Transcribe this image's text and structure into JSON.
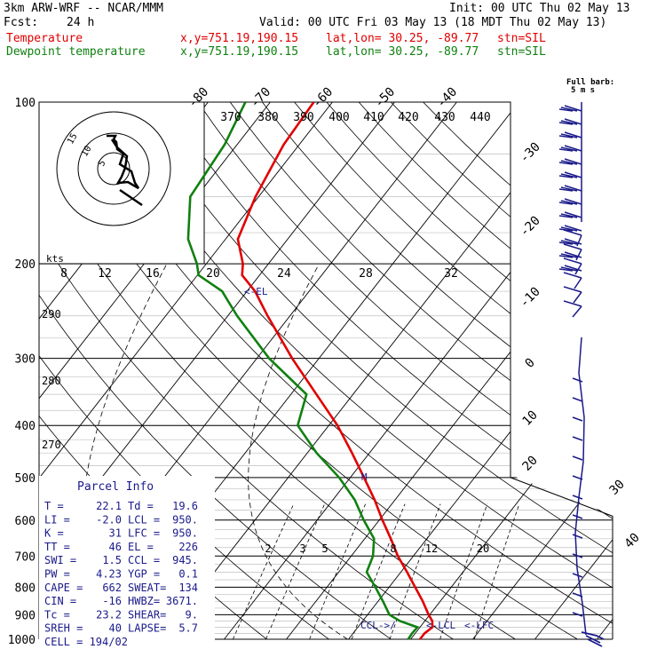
{
  "header": {
    "model": "3km ARW-WRF -- NCAR/MMM",
    "init": "Init: 00 UTC Thu 02 May 13",
    "fcst_label": "Fcst:",
    "fcst_value": "24 h",
    "valid": "Valid: 00 UTC Fri 03 May 13 (18 MDT Thu 02 May 13)"
  },
  "legend": [
    {
      "name": "Temperature",
      "xy": "x,y=751.19,190.15",
      "latlon": "lat,lon= 30.25, -89.77",
      "stn": "stn=SIL",
      "color": "#e00000"
    },
    {
      "name": "Dewpoint temperature",
      "xy": "x,y=751.19,190.15",
      "latlon": "lat,lon= 30.25, -89.77",
      "stn": "stn=SIL",
      "color": "#108010"
    }
  ],
  "wind_key": {
    "line1": "Full barb:",
    "line2": "5 m s"
  },
  "hodograph": {
    "unit": "kts",
    "ring_labels": [
      "5",
      "10",
      "15"
    ]
  },
  "parcel_info": {
    "title": "Parcel Info",
    "rows": [
      [
        "T  =",
        "22.1",
        "Td =",
        "19.6"
      ],
      [
        "LI =",
        "-2.0",
        "LCL =",
        "950."
      ],
      [
        "K  =",
        "31",
        "LFC =",
        "950."
      ],
      [
        "TT =",
        "46",
        "EL  =",
        "226"
      ],
      [
        "SWI =",
        "1.5",
        "CCL =",
        "945."
      ],
      [
        "PW =",
        "4.23",
        "YGP =",
        "0.1"
      ],
      [
        "CAPE =",
        "662",
        "SWEAT=",
        "134"
      ],
      [
        "CIN =",
        "-16",
        "HWBZ=",
        "3671."
      ],
      [
        "Tc =",
        "23.2",
        "SHEAR=",
        "9."
      ],
      [
        "SREH =",
        "40",
        "LAPSE=",
        "5.7"
      ],
      [
        "CELL = 194/02",
        "",
        "",
        ""
      ]
    ]
  },
  "annotations": {
    "el": "<-EL",
    "lcl": "<-LCL",
    "lfc": "<-LFC",
    "ccl": "CCL->/",
    "m": "M"
  },
  "chart_data": {
    "type": "line",
    "title": "",
    "pressure_levels": [
      100,
      200,
      300,
      400,
      500,
      600,
      700,
      800,
      900,
      1000
    ],
    "pressure_labels": [
      "100",
      "200",
      "300",
      "400",
      "500",
      "600",
      "700",
      "800",
      "900",
      "1000"
    ],
    "isotherm_labels": [
      "-80",
      "-70",
      "-60",
      "-50",
      "-40",
      "-30",
      "-20",
      "-10",
      "0",
      "10",
      "20",
      "30",
      "40"
    ],
    "theta_labels": [
      "370",
      "380",
      "390",
      "400",
      "410",
      "420",
      "430",
      "440"
    ],
    "hodo_speed_labels": [
      "8",
      "12",
      "16",
      "20",
      "24",
      "28",
      "32"
    ],
    "dry_adiabat_labels": [
      "290",
      "280",
      "270"
    ],
    "mixing_ratio_labels": [
      "2",
      "3",
      "5",
      "8",
      "12",
      "20"
    ],
    "series": [
      {
        "name": "Temperature",
        "color": "#e00000",
        "p": [
          1000,
          975,
          950,
          925,
          900,
          850,
          800,
          750,
          700,
          650,
          600,
          550,
          500,
          450,
          400,
          350,
          300,
          250,
          225,
          210,
          200,
          180,
          150,
          120,
          100
        ],
        "t": [
          21.5,
          21.5,
          22.0,
          21.2,
          19.8,
          17.2,
          14.2,
          11.0,
          7.5,
          4.2,
          0.5,
          -3.3,
          -7.8,
          -12.8,
          -18.6,
          -25.9,
          -34.3,
          -43.6,
          -48.7,
          -52.8,
          -54.1,
          -58.0,
          -60.5,
          -62.5,
          -63.0
        ]
      },
      {
        "name": "Dewpoint temperature",
        "color": "#108010",
        "p": [
          1000,
          975,
          950,
          925,
          900,
          850,
          800,
          750,
          700,
          650,
          600,
          550,
          500,
          450,
          400,
          350,
          300,
          250,
          225,
          210,
          200,
          180,
          150,
          120,
          100
        ],
        "t": [
          19.6,
          19.5,
          19.6,
          16.0,
          13.5,
          10.8,
          7.8,
          4.5,
          3.5,
          1.5,
          -2.5,
          -6.5,
          -11.8,
          -18.5,
          -25.0,
          -27.5,
          -38.0,
          -48.5,
          -54.0,
          -59.8,
          -61.5,
          -66.0,
          -71.0,
          -72.0,
          -74.0
        ]
      }
    ],
    "xlim": [
      -40,
      40
    ],
    "ylim": [
      1000,
      100
    ],
    "log_pressure": true,
    "grid": true
  }
}
